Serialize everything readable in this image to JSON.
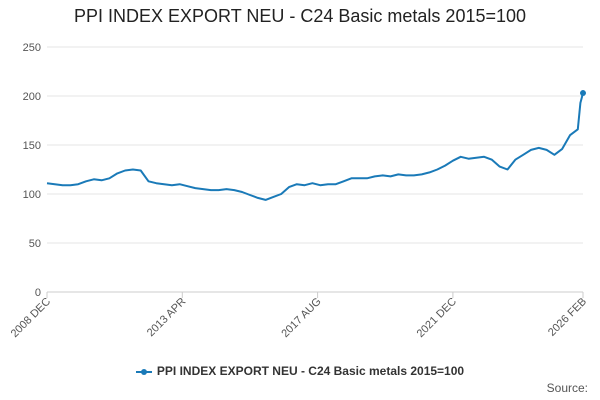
{
  "chart_data": {
    "type": "line",
    "title": "PPI INDEX EXPORT NEU - C24 Basic metals 2015=100",
    "xlabel": "",
    "ylabel": "",
    "ylim": [
      0,
      250
    ],
    "yticks": [
      0,
      50,
      100,
      150,
      200,
      250
    ],
    "xlim": [
      "2008-12",
      "2026-02"
    ],
    "xticks": [
      {
        "date": "2008-12",
        "label": "2008 DEC"
      },
      {
        "date": "2013-04",
        "label": "2013 APR"
      },
      {
        "date": "2017-08",
        "label": "2017 AUG"
      },
      {
        "date": "2021-12",
        "label": "2021 DEC"
      },
      {
        "date": "2026-02",
        "label": "2026 FEB"
      }
    ],
    "grid": true,
    "legend_position": "bottom",
    "series": [
      {
        "name": "PPI INDEX EXPORT NEU - C24 Basic metals 2015=100",
        "color": "#1a7ab8",
        "points": [
          [
            "2008-12",
            111
          ],
          [
            "2009-03",
            110
          ],
          [
            "2009-06",
            109
          ],
          [
            "2009-09",
            109
          ],
          [
            "2009-12",
            110
          ],
          [
            "2010-03",
            113
          ],
          [
            "2010-06",
            115
          ],
          [
            "2010-09",
            114
          ],
          [
            "2010-12",
            116
          ],
          [
            "2011-03",
            121
          ],
          [
            "2011-06",
            124
          ],
          [
            "2011-09",
            125
          ],
          [
            "2011-12",
            124
          ],
          [
            "2012-03",
            113
          ],
          [
            "2012-06",
            111
          ],
          [
            "2012-09",
            110
          ],
          [
            "2012-12",
            109
          ],
          [
            "2013-03",
            110
          ],
          [
            "2013-06",
            108
          ],
          [
            "2013-09",
            106
          ],
          [
            "2013-12",
            105
          ],
          [
            "2014-03",
            104
          ],
          [
            "2014-06",
            104
          ],
          [
            "2014-09",
            105
          ],
          [
            "2014-12",
            104
          ],
          [
            "2015-03",
            102
          ],
          [
            "2015-06",
            99
          ],
          [
            "2015-09",
            96
          ],
          [
            "2015-12",
            94
          ],
          [
            "2016-03",
            97
          ],
          [
            "2016-06",
            100
          ],
          [
            "2016-09",
            107
          ],
          [
            "2016-12",
            110
          ],
          [
            "2017-03",
            109
          ],
          [
            "2017-06",
            111
          ],
          [
            "2017-09",
            109
          ],
          [
            "2017-12",
            110
          ],
          [
            "2018-03",
            110
          ],
          [
            "2018-06",
            113
          ],
          [
            "2018-09",
            116
          ],
          [
            "2018-12",
            116
          ],
          [
            "2019-03",
            116
          ],
          [
            "2019-06",
            118
          ],
          [
            "2019-09",
            119
          ],
          [
            "2019-12",
            118
          ],
          [
            "2020-03",
            120
          ],
          [
            "2020-06",
            119
          ],
          [
            "2020-09",
            119
          ],
          [
            "2020-12",
            120
          ],
          [
            "2021-03",
            122
          ],
          [
            "2021-06",
            125
          ],
          [
            "2021-09",
            129
          ],
          [
            "2021-12",
            134
          ],
          [
            "2022-03",
            138
          ],
          [
            "2022-06",
            136
          ],
          [
            "2022-09",
            137
          ],
          [
            "2022-12",
            138
          ],
          [
            "2023-03",
            135
          ],
          [
            "2023-06",
            128
          ],
          [
            "2023-09",
            125
          ],
          [
            "2023-12",
            135
          ],
          [
            "2024-03",
            140
          ],
          [
            "2024-06",
            145
          ],
          [
            "2024-09",
            147
          ],
          [
            "2024-12",
            145
          ],
          [
            "2025-03",
            140
          ],
          [
            "2025-06",
            146
          ],
          [
            "2025-09",
            160
          ],
          [
            "2025-12",
            166
          ],
          [
            "2026-01",
            193
          ],
          [
            "2026-02",
            203
          ]
        ]
      }
    ]
  },
  "legend": {
    "label": "PPI INDEX EXPORT NEU - C24 Basic metals 2015=100",
    "color": "#1a7ab8"
  },
  "source_label": "Source:"
}
